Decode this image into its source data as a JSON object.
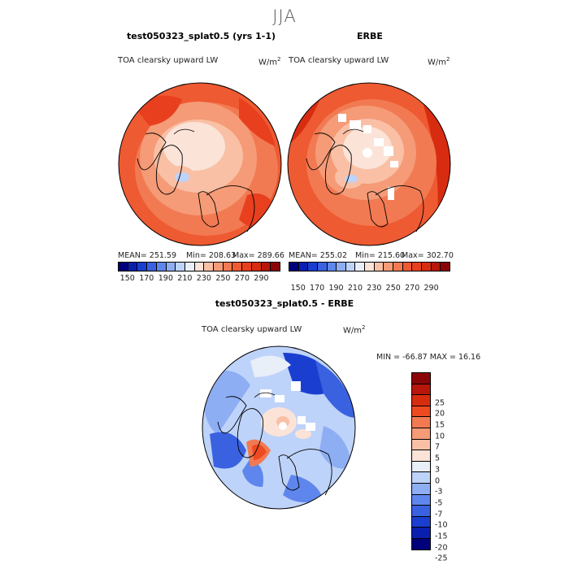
{
  "season": "JJA",
  "panels": [
    {
      "title": "test050323_splat0.5 (yrs 1-1)",
      "subtitle": "TOA clearsky upward LW",
      "units": "W/m",
      "units_exp": "2",
      "stats": {
        "mean": "MEAN= 251.59",
        "min": "Min= 208.63",
        "max": "Max= 289.66"
      }
    },
    {
      "title": "ERBE",
      "subtitle": "TOA clearsky upward LW",
      "units": "W/m",
      "units_exp": "2",
      "stats": {
        "mean": "MEAN= 255.02",
        "min": "Min= 215.60",
        "max": "Max= 302.70"
      }
    }
  ],
  "diff_panel": {
    "title": "test050323_splat0.5 - ERBE",
    "subtitle": "TOA clearsky upward LW",
    "units": "W/m",
    "units_exp": "2",
    "minmax": "MIN = -66.87 MAX =  16.16"
  },
  "colorbar_top": {
    "colors": [
      "#00007a",
      "#0a1fb0",
      "#1a3fd0",
      "#3a62e0",
      "#5f86ec",
      "#8eaef4",
      "#bed3fa",
      "#e9eff9",
      "#fbe3d8",
      "#f9c0a6",
      "#f59b77",
      "#f27a52",
      "#ee5a32",
      "#e8401e",
      "#d82c10",
      "#b8160a",
      "#8a0606"
    ],
    "labels": [
      "150",
      "170",
      "190",
      "210",
      "230",
      "250",
      "270",
      "290"
    ]
  },
  "colorbar_diff": {
    "colors": [
      "#8a0606",
      "#b8160a",
      "#d82c10",
      "#ee4a22",
      "#f27a52",
      "#f59b77",
      "#f9c0a6",
      "#fbe3d8",
      "#e9eff9",
      "#bed3fa",
      "#8eaef4",
      "#5f86ec",
      "#3a62e0",
      "#1a3fd0",
      "#0a1fb0",
      "#00007a"
    ],
    "labels": [
      "25",
      "20",
      "15",
      "10",
      "7",
      "5",
      "3",
      "0",
      "-3",
      "-5",
      "-7",
      "-10",
      "-15",
      "-20",
      "-25"
    ]
  }
}
